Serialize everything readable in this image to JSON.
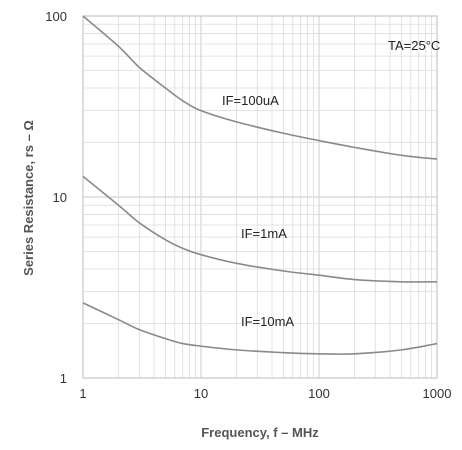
{
  "chart_data": {
    "type": "line",
    "title": "",
    "xlabel": "Frequency, f – MHz",
    "ylabel": "Series Resistance, rs – Ω",
    "xscale": "log",
    "yscale": "log",
    "xlim": [
      1,
      1000
    ],
    "ylim": [
      1,
      100
    ],
    "grid": true,
    "x_ticks": [
      "1",
      "10",
      "100",
      "1000"
    ],
    "y_ticks": [
      "1",
      "10",
      "100"
    ],
    "annotations": [
      {
        "text": "TA=25°C"
      }
    ],
    "series": [
      {
        "name": "IF=100uA",
        "x": [
          1,
          2,
          3,
          5,
          7,
          10,
          20,
          50,
          100,
          200,
          500,
          1000
        ],
        "y": [
          100,
          68,
          52,
          40,
          34,
          30,
          26,
          22.5,
          20.5,
          18.8,
          17,
          16.2
        ]
      },
      {
        "name": "IF=1mA",
        "x": [
          1,
          2,
          3,
          5,
          7,
          10,
          20,
          50,
          100,
          200,
          500,
          1000
        ],
        "y": [
          13,
          9,
          7.2,
          5.8,
          5.2,
          4.8,
          4.3,
          3.9,
          3.7,
          3.5,
          3.4,
          3.4
        ]
      },
      {
        "name": "IF=10mA",
        "x": [
          1,
          2,
          3,
          5,
          7,
          10,
          20,
          50,
          100,
          200,
          500,
          1000
        ],
        "y": [
          2.6,
          2.1,
          1.85,
          1.65,
          1.55,
          1.5,
          1.43,
          1.38,
          1.36,
          1.36,
          1.43,
          1.55
        ]
      }
    ],
    "colors": {
      "line": "#8a8a8a",
      "grid": "#dcdcdc",
      "axis": "#bbbbbb"
    }
  }
}
